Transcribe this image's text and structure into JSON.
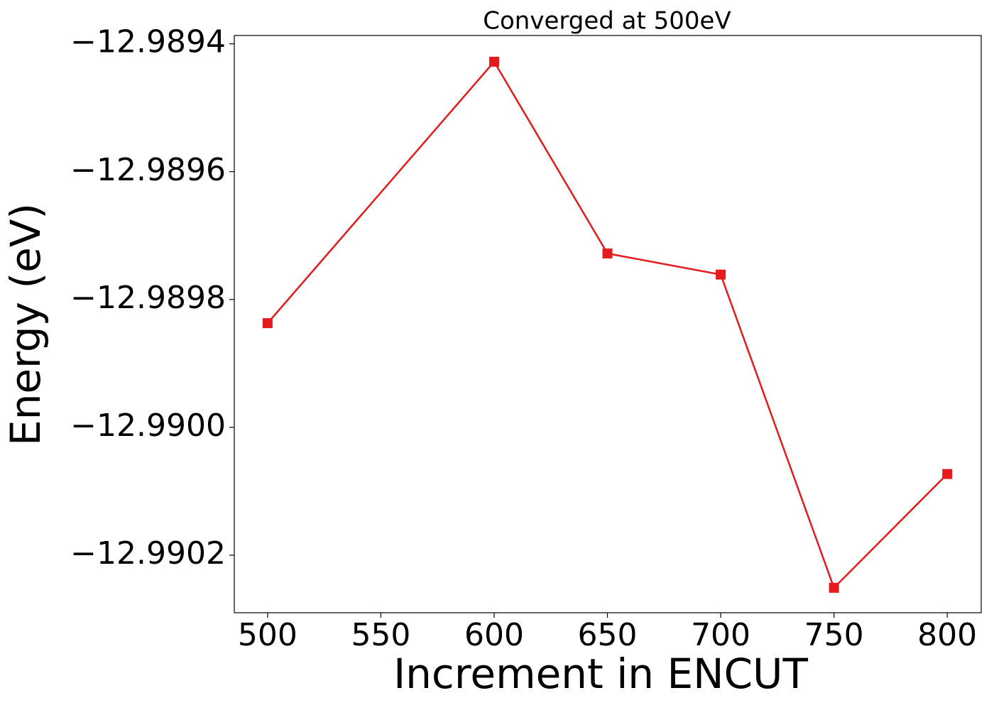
{
  "chart_data": {
    "type": "line",
    "title": "Converged at 500eV",
    "x_label": "Increment in ENCUT",
    "y_label": "Energy (eV)",
    "x": [
      500,
      600,
      650,
      700,
      750,
      800
    ],
    "series": [
      {
        "color": "#e41a1c",
        "marker": "square",
        "values": [
          -12.989837,
          -12.989428,
          -12.989728,
          -12.989761,
          -12.990251,
          -12.990073
        ]
      }
    ],
    "xlim": [
      485.3,
      815
    ],
    "ylim": [
      -12.99029,
      -12.989387
    ],
    "xticks": [
      500,
      550,
      600,
      650,
      700,
      750,
      800
    ],
    "yticks": [
      {
        "value": -12.9894,
        "label": "−12.9894"
      },
      {
        "value": -12.9896,
        "label": "−12.9896"
      },
      {
        "value": -12.9898,
        "label": "−12.9898"
      },
      {
        "value": -12.99,
        "label": "−12.9900"
      },
      {
        "value": -12.9902,
        "label": "−12.9902"
      }
    ],
    "grid": false
  }
}
